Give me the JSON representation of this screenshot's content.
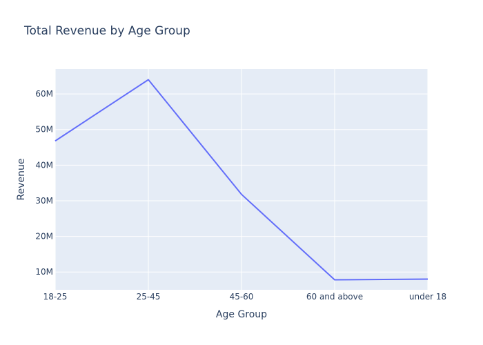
{
  "chart_data": {
    "type": "line",
    "title": "Total Revenue by Age Group",
    "xlabel": "Age Group",
    "ylabel": "Revenue",
    "categories": [
      "18-25",
      "25-45",
      "45-60",
      "60 and above",
      "under 18"
    ],
    "series": [
      {
        "values": [
          46800000,
          64000000,
          31800000,
          7800000,
          8000000
        ]
      }
    ],
    "ylim": [
      5000000,
      67000000
    ],
    "yticks": [
      10000000,
      20000000,
      30000000,
      40000000,
      50000000,
      60000000
    ],
    "ytick_labels": [
      "10M",
      "20M",
      "30M",
      "40M",
      "50M",
      "60M"
    ],
    "colors": {
      "line": "#636efa",
      "plot_bg": "#e5ecf6",
      "grid": "#ffffff",
      "text": "#2a3f5f"
    },
    "grid": true
  }
}
